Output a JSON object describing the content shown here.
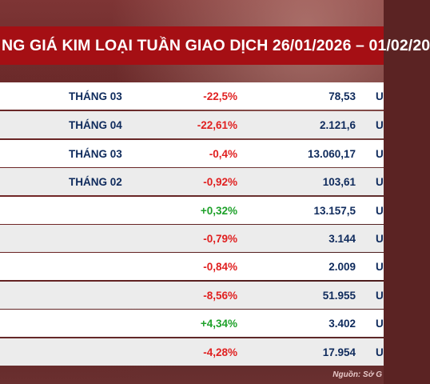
{
  "title": "NG GIÁ KIM LOẠI TUẦN GIAO DỊCH 26/01/2026 – 01/02/20",
  "rows": [
    {
      "month": "THÁNG 03",
      "change": "-22,5%",
      "direction": "down",
      "price": "78,53",
      "unit": "U"
    },
    {
      "month": "THÁNG 04",
      "change": "-22,61%",
      "direction": "down",
      "price": "2.121,6",
      "unit": "U"
    },
    {
      "month": "THÁNG 03",
      "change": "-0,4%",
      "direction": "down",
      "price": "13.060,17",
      "unit": "U"
    },
    {
      "month": "THÁNG 02",
      "change": "-0,92%",
      "direction": "down",
      "price": "103,61",
      "unit": "U"
    },
    {
      "month": "",
      "change": "+0,32%",
      "direction": "up",
      "price": "13.157,5",
      "unit": "U"
    },
    {
      "month": "",
      "change": "-0,79%",
      "direction": "down",
      "price": "3.144",
      "unit": "U"
    },
    {
      "month": "",
      "change": "-0,84%",
      "direction": "down",
      "price": "2.009",
      "unit": "U"
    },
    {
      "month": "",
      "change": "-8,56%",
      "direction": "down",
      "price": "51.955",
      "unit": "U"
    },
    {
      "month": "",
      "change": "+4,34%",
      "direction": "up",
      "price": "3.402",
      "unit": "U"
    },
    {
      "month": "",
      "change": "-4,28%",
      "direction": "down",
      "price": "17.954",
      "unit": "U"
    }
  ],
  "source": "Nguồn: Sở G",
  "colors": {
    "header_red": "#a50f14",
    "down_red": "#e02020",
    "up_green": "#1ea12a",
    "navy": "#0e2a5c"
  }
}
